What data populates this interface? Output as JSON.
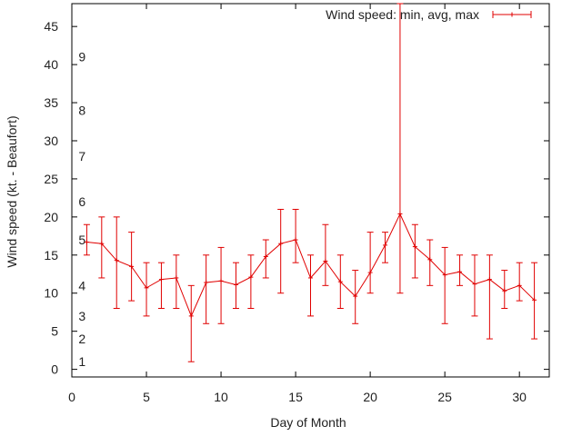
{
  "chart_data": {
    "type": "line",
    "subtype": "errorbars",
    "title": "",
    "xlabel": "Day of Month",
    "ylabel": "Wind speed (kt. - Beaufort)",
    "xlim": [
      0,
      32
    ],
    "ylim": [
      -1,
      48
    ],
    "xticks": [
      0,
      5,
      10,
      15,
      20,
      25,
      30
    ],
    "yticks": [
      0,
      5,
      10,
      15,
      20,
      25,
      30,
      35,
      40,
      45
    ],
    "grid": false,
    "legend": {
      "position": "top-right",
      "label": "Wind speed: min, avg, max"
    },
    "color": "#e00000",
    "beaufort_labels": [
      {
        "label": "1",
        "y": 1
      },
      {
        "label": "2",
        "y": 4
      },
      {
        "label": "3",
        "y": 7
      },
      {
        "label": "4",
        "y": 11
      },
      {
        "label": "5",
        "y": 17
      },
      {
        "label": "6",
        "y": 22
      },
      {
        "label": "7",
        "y": 28
      },
      {
        "label": "8",
        "y": 34
      },
      {
        "label": "9",
        "y": 41
      }
    ],
    "series": [
      {
        "name": "Wind speed: min, avg, max",
        "points": [
          {
            "x": 1,
            "min": 15,
            "avg": 16.7,
            "max": 19
          },
          {
            "x": 2,
            "min": 12,
            "avg": 16.5,
            "max": 20
          },
          {
            "x": 3,
            "min": 8,
            "avg": 14.3,
            "max": 20
          },
          {
            "x": 4,
            "min": 9,
            "avg": 13.5,
            "max": 18
          },
          {
            "x": 5,
            "min": 7,
            "avg": 10.7,
            "max": 14
          },
          {
            "x": 6,
            "min": 8,
            "avg": 11.8,
            "max": 14
          },
          {
            "x": 7,
            "min": 8,
            "avg": 12.0,
            "max": 15
          },
          {
            "x": 8,
            "min": 1,
            "avg": 7.0,
            "max": 11
          },
          {
            "x": 9,
            "min": 6,
            "avg": 11.4,
            "max": 15
          },
          {
            "x": 10,
            "min": 6,
            "avg": 11.6,
            "max": 16
          },
          {
            "x": 11,
            "min": 8,
            "avg": 11.1,
            "max": 14
          },
          {
            "x": 12,
            "min": 8,
            "avg": 12.1,
            "max": 15
          },
          {
            "x": 13,
            "min": 12,
            "avg": 14.8,
            "max": 17
          },
          {
            "x": 14,
            "min": 10,
            "avg": 16.5,
            "max": 21
          },
          {
            "x": 15,
            "min": 14,
            "avg": 17.0,
            "max": 21
          },
          {
            "x": 16,
            "min": 7,
            "avg": 12.0,
            "max": 15
          },
          {
            "x": 17,
            "min": 11,
            "avg": 14.2,
            "max": 19
          },
          {
            "x": 18,
            "min": 8,
            "avg": 11.5,
            "max": 15
          },
          {
            "x": 19,
            "min": 6,
            "avg": 9.6,
            "max": 13
          },
          {
            "x": 20,
            "min": 10,
            "avg": 12.7,
            "max": 18
          },
          {
            "x": 21,
            "min": 14,
            "avg": 16.3,
            "max": 18
          },
          {
            "x": 22,
            "min": 10,
            "avg": 20.4,
            "max": 48
          },
          {
            "x": 23,
            "min": 12,
            "avg": 16.1,
            "max": 19
          },
          {
            "x": 24,
            "min": 11,
            "avg": 14.4,
            "max": 17
          },
          {
            "x": 25,
            "min": 6,
            "avg": 12.4,
            "max": 16
          },
          {
            "x": 26,
            "min": 11,
            "avg": 12.8,
            "max": 15
          },
          {
            "x": 27,
            "min": 7,
            "avg": 11.2,
            "max": 15
          },
          {
            "x": 28,
            "min": 4,
            "avg": 11.8,
            "max": 15
          },
          {
            "x": 29,
            "min": 8,
            "avg": 10.3,
            "max": 13
          },
          {
            "x": 30,
            "min": 9,
            "avg": 11.0,
            "max": 14
          },
          {
            "x": 31,
            "min": 4,
            "avg": 9.1,
            "max": 14
          }
        ]
      }
    ]
  }
}
